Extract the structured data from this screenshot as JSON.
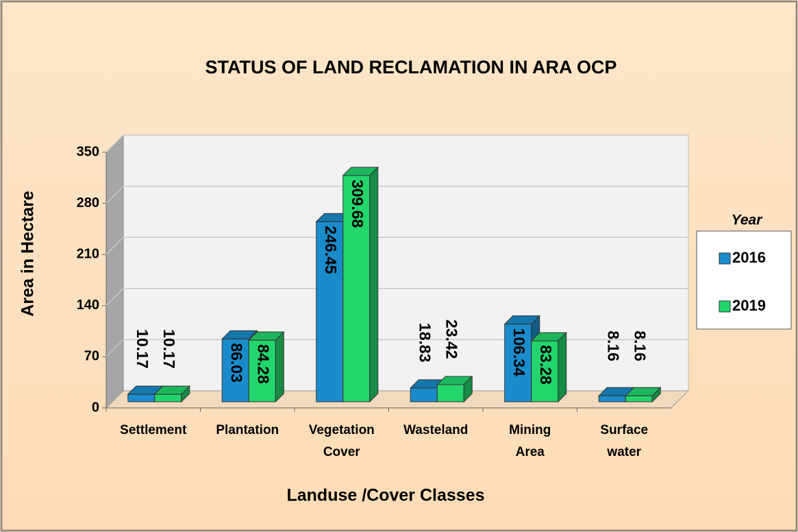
{
  "chart_data": {
    "type": "bar3d",
    "title": "STATUS OF LAND RECLAMATION IN ARA OCP",
    "x_label": "Landuse /Cover Classes",
    "y_label": "Area in Hectare",
    "categories": [
      "Settlement",
      "Plantation",
      "Vegetation Cover",
      "Wasteland",
      "Mining Area",
      "Surface water"
    ],
    "series": [
      {
        "name": "2016",
        "color": "#1a8ccc",
        "values": [
          10.17,
          86.03,
          246.45,
          18.83,
          106.34,
          8.16
        ]
      },
      {
        "name": "2019",
        "color": "#22d66c",
        "values": [
          10.17,
          84.28,
          309.68,
          23.42,
          83.28,
          8.16
        ]
      }
    ],
    "ylim": [
      0,
      350
    ],
    "yticks": [
      0,
      70,
      140,
      210,
      280,
      350
    ],
    "grid": true,
    "legend_title": "Year",
    "legend_position": "right"
  }
}
